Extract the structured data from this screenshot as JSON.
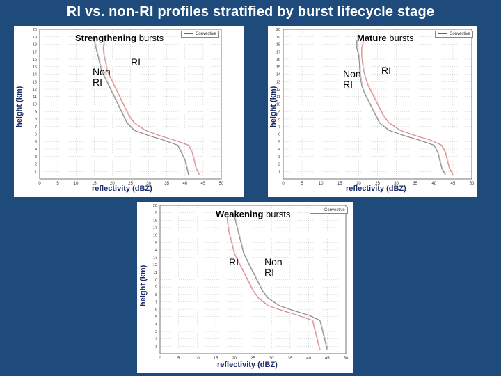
{
  "slide_title": "RI vs. non-RI profiles stratified by burst lifecycle stage",
  "chart_data": [
    {
      "type": "line",
      "title_bold": "Strengthening",
      "title_rest": " bursts",
      "xlabel": "reflectivity (dBZ)",
      "ylabel": "height (km)",
      "xlim": [
        0,
        50
      ],
      "ylim": [
        0,
        20
      ],
      "x_ticks": [
        0,
        5,
        10,
        15,
        20,
        25,
        30,
        35,
        40,
        45,
        50
      ],
      "y_ticks": [
        1,
        2,
        3,
        4,
        5,
        6,
        7,
        8,
        9,
        10,
        11,
        12,
        13,
        14,
        15,
        16,
        17,
        18,
        19,
        20
      ],
      "grid": true,
      "legend_label": "Convective",
      "annotations": [
        {
          "text": "RI",
          "series": "RI"
        },
        {
          "text": "Non\nRI",
          "series": "Non RI"
        }
      ],
      "series": [
        {
          "name": "RI",
          "color": "#d88a8a",
          "points": [
            [
              44,
              0.5
            ],
            [
              43,
              1.5
            ],
            [
              42.5,
              2.5
            ],
            [
              42,
              3.5
            ],
            [
              41,
              4.5
            ],
            [
              37,
              5.2
            ],
            [
              33,
              5.8
            ],
            [
              29,
              6.5
            ],
            [
              26,
              7.5
            ],
            [
              24.5,
              8.5
            ],
            [
              23.5,
              9.5
            ],
            [
              22.5,
              10.5
            ],
            [
              21.5,
              11.5
            ],
            [
              20.5,
              12.5
            ],
            [
              19.5,
              13.5
            ],
            [
              18.5,
              14.5
            ],
            [
              18.2,
              15.5
            ],
            [
              17.7,
              16.5
            ],
            [
              17.5,
              17.5
            ],
            [
              17.8,
              18.5
            ]
          ]
        },
        {
          "name": "Non RI",
          "color": "#8a8a8a",
          "points": [
            [
              41,
              0.5
            ],
            [
              40.5,
              1.5
            ],
            [
              40,
              2.5
            ],
            [
              39,
              3.5
            ],
            [
              38,
              4.5
            ],
            [
              34,
              5.2
            ],
            [
              30,
              5.8
            ],
            [
              26,
              6.5
            ],
            [
              24,
              7.5
            ],
            [
              23,
              8.5
            ],
            [
              22,
              9.5
            ],
            [
              21,
              10.5
            ],
            [
              20,
              11.5
            ],
            [
              19,
              12.5
            ],
            [
              18,
              13.5
            ],
            [
              17,
              14.5
            ],
            [
              16.5,
              15.5
            ],
            [
              16,
              16.5
            ],
            [
              15.5,
              17.5
            ],
            [
              15,
              18.5
            ]
          ]
        }
      ]
    },
    {
      "type": "line",
      "title_bold": "Mature",
      "title_rest": " bursts",
      "xlabel": "reflectivity (dBZ)",
      "ylabel": "height (km)",
      "xlim": [
        0,
        50
      ],
      "ylim": [
        0,
        20
      ],
      "x_ticks": [
        0,
        5,
        10,
        15,
        20,
        25,
        30,
        35,
        40,
        45,
        50
      ],
      "y_ticks": [
        1,
        2,
        3,
        4,
        5,
        6,
        7,
        8,
        9,
        10,
        11,
        12,
        13,
        14,
        15,
        16,
        17,
        18,
        19,
        20
      ],
      "grid": true,
      "legend_label": "Convective",
      "annotations": [
        {
          "text": "RI",
          "series": "RI"
        },
        {
          "text": "Non\nRI",
          "series": "Non RI"
        }
      ],
      "series": [
        {
          "name": "RI",
          "color": "#d88a8a",
          "points": [
            [
              45,
              0.5
            ],
            [
              44,
              1.5
            ],
            [
              43.5,
              2.5
            ],
            [
              43,
              3.5
            ],
            [
              42,
              4.5
            ],
            [
              39,
              5.2
            ],
            [
              35,
              5.8
            ],
            [
              31,
              6.5
            ],
            [
              28,
              7.5
            ],
            [
              26.5,
              8.5
            ],
            [
              25.5,
              9.5
            ],
            [
              24.5,
              10.5
            ],
            [
              23.5,
              11.5
            ],
            [
              22.5,
              12.5
            ],
            [
              21.8,
              13.5
            ],
            [
              21.3,
              14.5
            ],
            [
              21,
              15.5
            ],
            [
              20.8,
              16.5
            ],
            [
              20.8,
              17.5
            ],
            [
              21.3,
              18.5
            ]
          ]
        },
        {
          "name": "Non RI",
          "color": "#8a8a8a",
          "points": [
            [
              43,
              0.5
            ],
            [
              42,
              1.5
            ],
            [
              41.5,
              2.5
            ],
            [
              41,
              3.5
            ],
            [
              40,
              4.5
            ],
            [
              36,
              5.2
            ],
            [
              32,
              5.8
            ],
            [
              28,
              6.5
            ],
            [
              25.5,
              7.5
            ],
            [
              24.5,
              8.5
            ],
            [
              23.5,
              9.5
            ],
            [
              22.5,
              10.5
            ],
            [
              21.5,
              11.5
            ],
            [
              20.8,
              12.5
            ],
            [
              20.5,
              13.5
            ],
            [
              20.3,
              14.5
            ],
            [
              20.2,
              15.5
            ],
            [
              20,
              16.5
            ],
            [
              19.5,
              17.5
            ],
            [
              19.5,
              18.5
            ]
          ]
        }
      ]
    },
    {
      "type": "line",
      "title_bold": "Weakening",
      "title_rest": " bursts",
      "xlabel": "reflectivity (dBZ)",
      "ylabel": "height (km)",
      "xlim": [
        0,
        50
      ],
      "ylim": [
        0,
        20
      ],
      "x_ticks": [
        0,
        5,
        10,
        15,
        20,
        25,
        30,
        35,
        40,
        45,
        50
      ],
      "y_ticks": [
        1,
        2,
        3,
        4,
        5,
        6,
        7,
        8,
        9,
        10,
        11,
        12,
        13,
        14,
        15,
        16,
        17,
        18,
        19,
        20
      ],
      "grid": true,
      "legend_label": "Convective",
      "annotations": [
        {
          "text": "RI",
          "series": "RI"
        },
        {
          "text": "Non\nRI",
          "series": "Non RI"
        }
      ],
      "series": [
        {
          "name": "RI",
          "color": "#d88a8a",
          "points": [
            [
              43,
              0.5
            ],
            [
              42.5,
              1.5
            ],
            [
              42,
              2.5
            ],
            [
              41.5,
              3.5
            ],
            [
              41,
              4.5
            ],
            [
              37,
              5.2
            ],
            [
              33,
              5.8
            ],
            [
              29,
              6.5
            ],
            [
              26.5,
              7.5
            ],
            [
              25,
              8.5
            ],
            [
              24,
              9.5
            ],
            [
              23,
              10.5
            ],
            [
              22,
              11.5
            ],
            [
              21,
              12.5
            ],
            [
              20,
              13.5
            ],
            [
              19.5,
              14.5
            ],
            [
              19,
              15.5
            ],
            [
              18.5,
              16.5
            ],
            [
              18.2,
              17.5
            ],
            [
              18,
              18.5
            ]
          ]
        },
        {
          "name": "Non RI",
          "color": "#8a8a8a",
          "points": [
            [
              45,
              0.5
            ],
            [
              44.5,
              1.5
            ],
            [
              44,
              2.5
            ],
            [
              43.5,
              3.5
            ],
            [
              43,
              4.5
            ],
            [
              40,
              5.2
            ],
            [
              36,
              5.8
            ],
            [
              32,
              6.5
            ],
            [
              29,
              7.5
            ],
            [
              27.5,
              8.5
            ],
            [
              26.5,
              9.5
            ],
            [
              25.5,
              10.5
            ],
            [
              24.5,
              11.5
            ],
            [
              23.5,
              12.5
            ],
            [
              22.5,
              13.5
            ],
            [
              22,
              14.5
            ],
            [
              21.5,
              15.5
            ],
            [
              21,
              16.5
            ],
            [
              20.5,
              17.5
            ],
            [
              20,
              18.5
            ]
          ]
        }
      ]
    }
  ]
}
